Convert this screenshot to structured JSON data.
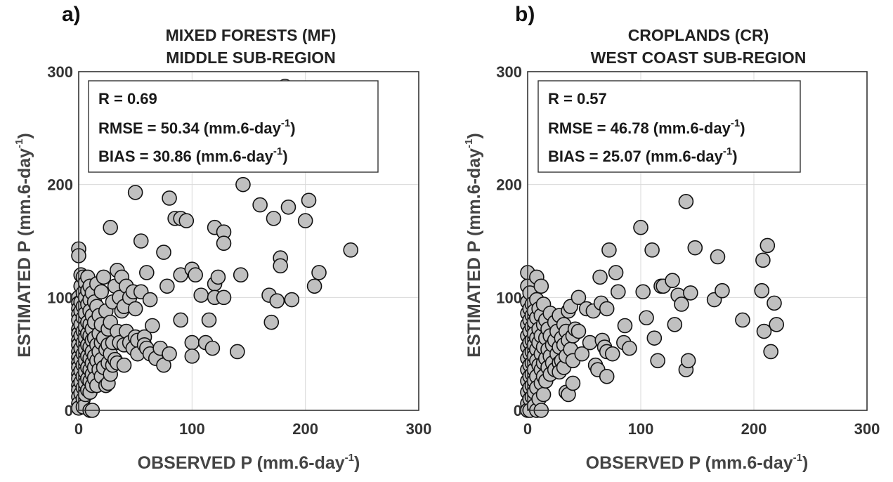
{
  "chart_data": [
    {
      "type": "scatter",
      "panel_label": "a)",
      "title_line1": "MIXED FORESTS (MF)",
      "title_line2": "MIDDLE SUB-REGION",
      "xlabel": "OBSERVED P (mm.6-day",
      "ylabel": "ESTIMATED P (mm.6-day",
      "unit_exponent": "-1",
      "xlim": [
        0,
        300
      ],
      "ylim": [
        0,
        300
      ],
      "xticks": [
        "0",
        "100",
        "200",
        "300"
      ],
      "yticks": [
        "0",
        "100",
        "200",
        "300"
      ],
      "grid": true,
      "marker_color": "#c0c0c0",
      "stats": {
        "r": "R = 0.69",
        "rmse_prefix": "RMSE = 50.34 (mm.6-day",
        "bias_prefix": "BIAS = 30.86 (mm.6-day",
        "suffix": ")"
      },
      "points": [
        [
          0,
          143
        ],
        [
          0,
          137
        ],
        [
          0,
          100
        ],
        [
          0,
          95
        ],
        [
          0,
          90
        ],
        [
          0,
          85
        ],
        [
          0,
          80
        ],
        [
          0,
          72
        ],
        [
          0,
          68
        ],
        [
          0,
          62
        ],
        [
          0,
          58
        ],
        [
          0,
          52
        ],
        [
          0,
          47
        ],
        [
          0,
          42
        ],
        [
          0,
          38
        ],
        [
          0,
          32
        ],
        [
          0,
          28
        ],
        [
          0,
          22
        ],
        [
          0,
          18
        ],
        [
          0,
          12
        ],
        [
          0,
          6
        ],
        [
          0,
          2
        ],
        [
          2,
          120
        ],
        [
          2,
          110
        ],
        [
          2,
          96
        ],
        [
          2,
          88
        ],
        [
          2,
          76
        ],
        [
          2,
          66
        ],
        [
          2,
          55
        ],
        [
          2,
          45
        ],
        [
          2,
          35
        ],
        [
          2,
          25
        ],
        [
          2,
          15
        ],
        [
          4,
          118
        ],
        [
          4,
          104
        ],
        [
          4,
          92
        ],
        [
          4,
          82
        ],
        [
          4,
          70
        ],
        [
          4,
          60
        ],
        [
          4,
          50
        ],
        [
          4,
          40
        ],
        [
          4,
          30
        ],
        [
          4,
          20
        ],
        [
          4,
          10
        ],
        [
          4,
          3
        ],
        [
          6,
          113
        ],
        [
          6,
          100
        ],
        [
          6,
          86
        ],
        [
          6,
          74
        ],
        [
          6,
          64
        ],
        [
          6,
          54
        ],
        [
          6,
          44
        ],
        [
          6,
          34
        ],
        [
          6,
          24
        ],
        [
          6,
          14
        ],
        [
          8,
          118
        ],
        [
          8,
          106
        ],
        [
          8,
          94
        ],
        [
          8,
          78
        ],
        [
          8,
          68
        ],
        [
          8,
          58
        ],
        [
          8,
          48
        ],
        [
          8,
          38
        ],
        [
          8,
          28
        ],
        [
          8,
          18
        ],
        [
          10,
          110
        ],
        [
          10,
          98
        ],
        [
          10,
          88
        ],
        [
          10,
          76
        ],
        [
          10,
          66
        ],
        [
          10,
          56
        ],
        [
          10,
          46
        ],
        [
          10,
          36
        ],
        [
          10,
          26
        ],
        [
          10,
          16
        ],
        [
          10,
          0
        ],
        [
          12,
          104
        ],
        [
          12,
          84
        ],
        [
          12,
          72
        ],
        [
          12,
          62
        ],
        [
          12,
          52
        ],
        [
          12,
          42
        ],
        [
          12,
          32
        ],
        [
          12,
          22
        ],
        [
          12,
          0
        ],
        [
          14,
          96
        ],
        [
          14,
          78
        ],
        [
          14,
          64
        ],
        [
          14,
          48
        ],
        [
          14,
          38
        ],
        [
          14,
          28
        ],
        [
          16,
          112
        ],
        [
          16,
          92
        ],
        [
          16,
          58
        ],
        [
          16,
          44
        ],
        [
          16,
          22
        ],
        [
          18,
          84
        ],
        [
          18,
          68
        ],
        [
          18,
          52
        ],
        [
          18,
          36
        ],
        [
          20,
          105
        ],
        [
          20,
          76
        ],
        [
          20,
          60
        ],
        [
          20,
          45
        ],
        [
          20,
          30
        ],
        [
          22,
          118
        ],
        [
          22,
          64
        ],
        [
          22,
          38
        ],
        [
          24,
          88
        ],
        [
          24,
          54
        ],
        [
          24,
          22
        ],
        [
          26,
          72
        ],
        [
          26,
          58
        ],
        [
          26,
          42
        ],
        [
          26,
          24
        ],
        [
          28,
          162
        ],
        [
          28,
          78
        ],
        [
          28,
          50
        ],
        [
          28,
          32
        ],
        [
          30,
          96
        ],
        [
          30,
          60
        ],
        [
          30,
          40
        ],
        [
          32,
          110
        ],
        [
          32,
          45
        ],
        [
          34,
          124
        ],
        [
          34,
          70
        ],
        [
          34,
          42
        ],
        [
          36,
          100
        ],
        [
          36,
          60
        ],
        [
          38,
          118
        ],
        [
          38,
          88
        ],
        [
          40,
          92
        ],
        [
          40,
          58
        ],
        [
          40,
          40
        ],
        [
          42,
          110
        ],
        [
          42,
          70
        ],
        [
          45,
          100
        ],
        [
          45,
          60
        ],
        [
          48,
          105
        ],
        [
          48,
          55
        ],
        [
          50,
          193
        ],
        [
          50,
          90
        ],
        [
          50,
          65
        ],
        [
          52,
          62
        ],
        [
          52,
          50
        ],
        [
          55,
          150
        ],
        [
          55,
          105
        ],
        [
          58,
          65
        ],
        [
          58,
          58
        ],
        [
          60,
          122
        ],
        [
          60,
          55
        ],
        [
          63,
          98
        ],
        [
          63,
          50
        ],
        [
          65,
          75
        ],
        [
          68,
          46
        ],
        [
          72,
          55
        ],
        [
          75,
          140
        ],
        [
          75,
          40
        ],
        [
          78,
          110
        ],
        [
          80,
          188
        ],
        [
          80,
          50
        ],
        [
          85,
          170
        ],
        [
          90,
          170
        ],
        [
          90,
          120
        ],
        [
          90,
          80
        ],
        [
          95,
          168
        ],
        [
          100,
          125
        ],
        [
          100,
          60
        ],
        [
          100,
          48
        ],
        [
          103,
          120
        ],
        [
          108,
          102
        ],
        [
          112,
          60
        ],
        [
          115,
          80
        ],
        [
          118,
          55
        ],
        [
          120,
          162
        ],
        [
          120,
          112
        ],
        [
          120,
          100
        ],
        [
          123,
          118
        ],
        [
          128,
          158
        ],
        [
          128,
          148
        ],
        [
          128,
          100
        ],
        [
          140,
          52
        ],
        [
          143,
          120
        ],
        [
          145,
          200
        ],
        [
          160,
          182
        ],
        [
          168,
          102
        ],
        [
          170,
          78
        ],
        [
          172,
          170
        ],
        [
          175,
          97
        ],
        [
          178,
          135
        ],
        [
          178,
          128
        ],
        [
          182,
          287
        ],
        [
          185,
          180
        ],
        [
          188,
          98
        ],
        [
          200,
          168
        ],
        [
          203,
          186
        ],
        [
          208,
          110
        ],
        [
          212,
          122
        ],
        [
          240,
          142
        ]
      ]
    },
    {
      "type": "scatter",
      "panel_label": "b)",
      "title_line1": "CROPLANDS (CR)",
      "title_line2": "WEST COAST SUB-REGION",
      "xlabel": "OBSERVED P (mm.6-day",
      "ylabel": "ESTIMATED P (mm.6-day",
      "unit_exponent": "-1",
      "xlim": [
        0,
        300
      ],
      "ylim": [
        0,
        300
      ],
      "xticks": [
        "0",
        "100",
        "200",
        "300"
      ],
      "yticks": [
        "0",
        "100",
        "200",
        "300"
      ],
      "grid": true,
      "marker_color": "#c0c0c0",
      "stats": {
        "r": "R = 0.57",
        "rmse_prefix": "RMSE = 46.78 (mm.6-day",
        "bias_prefix": "BIAS = 25.07 (mm.6-day",
        "suffix": ")"
      },
      "points": [
        [
          0,
          122
        ],
        [
          0,
          110
        ],
        [
          0,
          96
        ],
        [
          0,
          86
        ],
        [
          0,
          76
        ],
        [
          0,
          66
        ],
        [
          0,
          56
        ],
        [
          0,
          46
        ],
        [
          0,
          36
        ],
        [
          0,
          26
        ],
        [
          0,
          16
        ],
        [
          0,
          6
        ],
        [
          0,
          0
        ],
        [
          2,
          104
        ],
        [
          2,
          90
        ],
        [
          2,
          80
        ],
        [
          2,
          70
        ],
        [
          2,
          60
        ],
        [
          2,
          50
        ],
        [
          2,
          40
        ],
        [
          2,
          30
        ],
        [
          2,
          20
        ],
        [
          2,
          10
        ],
        [
          2,
          0
        ],
        [
          4,
          94
        ],
        [
          4,
          84
        ],
        [
          4,
          74
        ],
        [
          4,
          62
        ],
        [
          4,
          52
        ],
        [
          4,
          42
        ],
        [
          4,
          32
        ],
        [
          4,
          22
        ],
        [
          4,
          12
        ],
        [
          6,
          88
        ],
        [
          6,
          78
        ],
        [
          6,
          68
        ],
        [
          6,
          58
        ],
        [
          6,
          48
        ],
        [
          6,
          36
        ],
        [
          6,
          26
        ],
        [
          6,
          16
        ],
        [
          6,
          4
        ],
        [
          8,
          118
        ],
        [
          8,
          98
        ],
        [
          8,
          82
        ],
        [
          8,
          64
        ],
        [
          8,
          54
        ],
        [
          8,
          44
        ],
        [
          8,
          30
        ],
        [
          8,
          20
        ],
        [
          8,
          0
        ],
        [
          10,
          90
        ],
        [
          10,
          72
        ],
        [
          10,
          60
        ],
        [
          10,
          40
        ],
        [
          10,
          10
        ],
        [
          12,
          110
        ],
        [
          12,
          84
        ],
        [
          12,
          66
        ],
        [
          12,
          50
        ],
        [
          12,
          36
        ],
        [
          12,
          24
        ],
        [
          12,
          0
        ],
        [
          14,
          94
        ],
        [
          14,
          76
        ],
        [
          14,
          56
        ],
        [
          14,
          42
        ],
        [
          14,
          30
        ],
        [
          14,
          14
        ],
        [
          16,
          80
        ],
        [
          16,
          64
        ],
        [
          16,
          46
        ],
        [
          16,
          26
        ],
        [
          18,
          72
        ],
        [
          18,
          54
        ],
        [
          18,
          38
        ],
        [
          20,
          86
        ],
        [
          20,
          66
        ],
        [
          20,
          48
        ],
        [
          20,
          32
        ],
        [
          22,
          58
        ],
        [
          22,
          42
        ],
        [
          24,
          78
        ],
        [
          24,
          62
        ],
        [
          24,
          36
        ],
        [
          26,
          70
        ],
        [
          26,
          50
        ],
        [
          28,
          84
        ],
        [
          28,
          56
        ],
        [
          28,
          42
        ],
        [
          28,
          34
        ],
        [
          30,
          64
        ],
        [
          30,
          44
        ],
        [
          32,
          76
        ],
        [
          32,
          58
        ],
        [
          32,
          38
        ],
        [
          34,
          70
        ],
        [
          34,
          48
        ],
        [
          34,
          16
        ],
        [
          36,
          88
        ],
        [
          36,
          62
        ],
        [
          36,
          14
        ],
        [
          38,
          92
        ],
        [
          38,
          54
        ],
        [
          40,
          66
        ],
        [
          40,
          44
        ],
        [
          40,
          24
        ],
        [
          42,
          72
        ],
        [
          45,
          100
        ],
        [
          45,
          70
        ],
        [
          48,
          50
        ],
        [
          52,
          90
        ],
        [
          55,
          60
        ],
        [
          58,
          88
        ],
        [
          60,
          40
        ],
        [
          62,
          36
        ],
        [
          64,
          118
        ],
        [
          65,
          95
        ],
        [
          66,
          62
        ],
        [
          68,
          56
        ],
        [
          70,
          90
        ],
        [
          70,
          52
        ],
        [
          70,
          30
        ],
        [
          72,
          142
        ],
        [
          75,
          50
        ],
        [
          78,
          122
        ],
        [
          80,
          105
        ],
        [
          85,
          60
        ],
        [
          86,
          75
        ],
        [
          90,
          55
        ],
        [
          100,
          162
        ],
        [
          102,
          105
        ],
        [
          105,
          82
        ],
        [
          110,
          142
        ],
        [
          112,
          64
        ],
        [
          115,
          44
        ],
        [
          118,
          110
        ],
        [
          120,
          110
        ],
        [
          128,
          115
        ],
        [
          130,
          76
        ],
        [
          133,
          102
        ],
        [
          136,
          94
        ],
        [
          140,
          185
        ],
        [
          140,
          36
        ],
        [
          142,
          44
        ],
        [
          144,
          104
        ],
        [
          148,
          144
        ],
        [
          165,
          98
        ],
        [
          168,
          136
        ],
        [
          172,
          106
        ],
        [
          190,
          80
        ],
        [
          207,
          106
        ],
        [
          208,
          133
        ],
        [
          209,
          70
        ],
        [
          212,
          146
        ],
        [
          215,
          52
        ],
        [
          218,
          95
        ],
        [
          220,
          76
        ]
      ]
    }
  ]
}
